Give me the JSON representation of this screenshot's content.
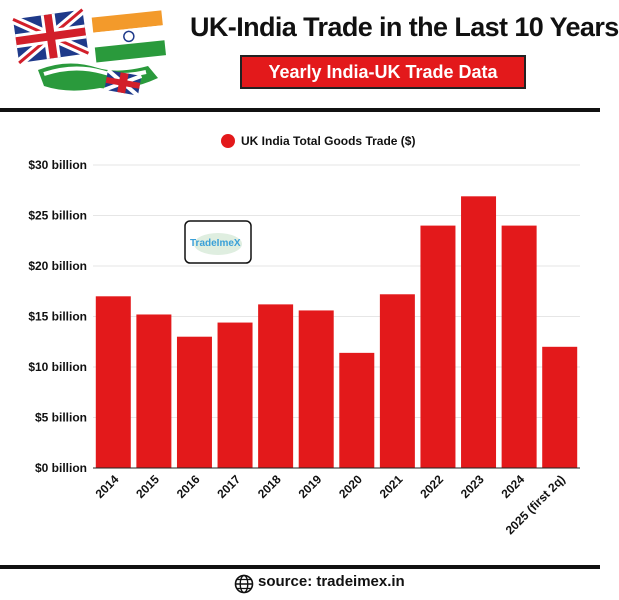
{
  "header": {
    "title": "UK-India Trade in the Last 10 Years",
    "subtitle": "Yearly India-UK Trade Data"
  },
  "logo": {
    "text": "TradeImeX"
  },
  "footer": {
    "source": "source: tradeimex.in",
    "icon": "globe-icon"
  },
  "colors": {
    "bar": "#e3191b",
    "accent": "#e3191b",
    "text": "#111111",
    "grid": "#e6e6e6"
  },
  "chart_data": {
    "type": "bar",
    "categories": [
      "2014",
      "2015",
      "2016",
      "2017",
      "2018",
      "2019",
      "2020",
      "2021",
      "2022",
      "2023",
      "2024",
      "2025 (first 2q)"
    ],
    "series": [
      {
        "name": "UK India Total Goods Trade ($)",
        "values": [
          17,
          15.2,
          13,
          14.4,
          16.2,
          15.6,
          11.4,
          17.2,
          24,
          26.9,
          24,
          12
        ]
      }
    ],
    "yticks": [
      "$0 billion",
      "$5 billion",
      "$10 billion",
      "$15 billion",
      "$20 billion",
      "$25 billion",
      "$30 billion"
    ],
    "ylim": [
      0,
      30
    ],
    "grid": true,
    "legend": "top-center"
  }
}
